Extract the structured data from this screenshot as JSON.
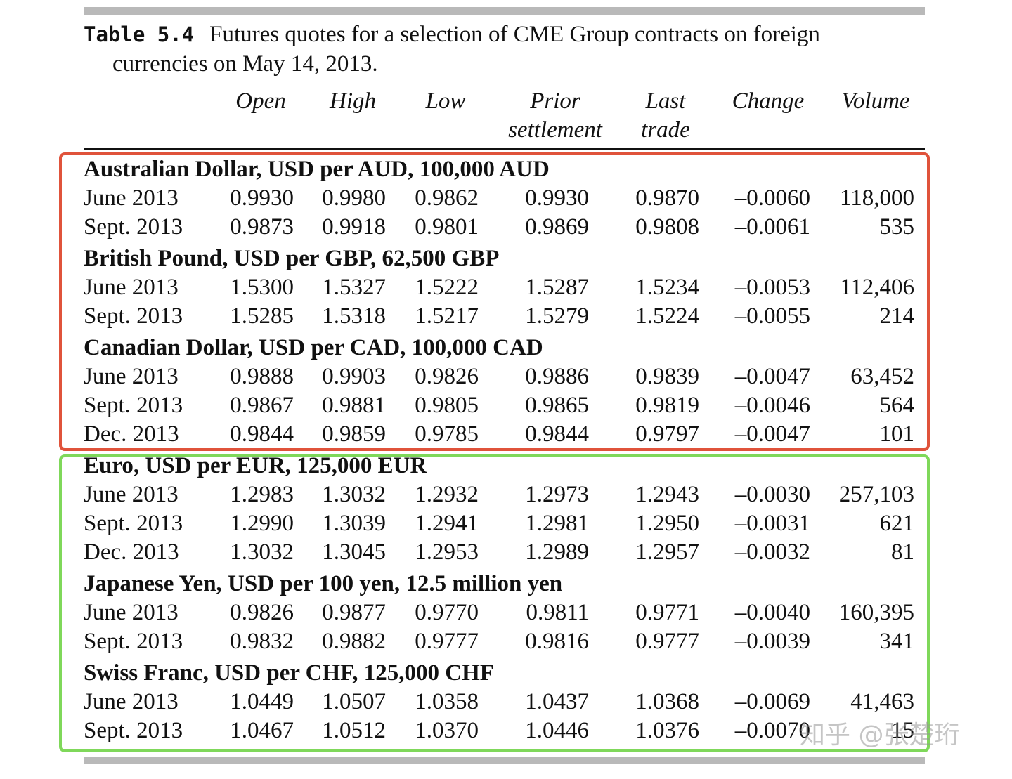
{
  "caption": {
    "label": "Table 5.4",
    "line1": "Futures quotes for a selection of CME Group contracts on foreign",
    "line2": "currencies on May 14, 2013."
  },
  "headers": {
    "open": "Open",
    "high": "High",
    "low": "Low",
    "prior": "Prior",
    "prior2": "settlement",
    "last": "Last",
    "last2": "trade",
    "change": "Change",
    "volume": "Volume"
  },
  "colors": {
    "red_box": "#e0533b",
    "green_box": "#7fd85a",
    "rules": "#b9b9b9"
  },
  "groups": [
    {
      "title": "Australian Dollar, USD per AUD, 100,000 AUD",
      "rows": [
        {
          "month": "June 2013",
          "open": "0.9930",
          "high": "0.9980",
          "low": "0.9862",
          "prior": "0.9930",
          "last": "0.9870",
          "change": "–0.0060",
          "volume": "118,000"
        },
        {
          "month": "Sept. 2013",
          "open": "0.9873",
          "high": "0.9918",
          "low": "0.9801",
          "prior": "0.9869",
          "last": "0.9808",
          "change": "–0.0061",
          "volume": "535"
        }
      ]
    },
    {
      "title": "British Pound, USD per GBP, 62,500 GBP",
      "rows": [
        {
          "month": "June 2013",
          "open": "1.5300",
          "high": "1.5327",
          "low": "1.5222",
          "prior": "1.5287",
          "last": "1.5234",
          "change": "–0.0053",
          "volume": "112,406"
        },
        {
          "month": "Sept. 2013",
          "open": "1.5285",
          "high": "1.5318",
          "low": "1.5217",
          "prior": "1.5279",
          "last": "1.5224",
          "change": "–0.0055",
          "volume": "214"
        }
      ]
    },
    {
      "title": "Canadian Dollar, USD per CAD, 100,000 CAD",
      "rows": [
        {
          "month": "June 2013",
          "open": "0.9888",
          "high": "0.9903",
          "low": "0.9826",
          "prior": "0.9886",
          "last": "0.9839",
          "change": "–0.0047",
          "volume": "63,452"
        },
        {
          "month": "Sept. 2013",
          "open": "0.9867",
          "high": "0.9881",
          "low": "0.9805",
          "prior": "0.9865",
          "last": "0.9819",
          "change": "–0.0046",
          "volume": "564"
        },
        {
          "month": "Dec. 2013",
          "open": "0.9844",
          "high": "0.9859",
          "low": "0.9785",
          "prior": "0.9844",
          "last": "0.9797",
          "change": "–0.0047",
          "volume": "101"
        }
      ]
    },
    {
      "title": "Euro, USD per EUR, 125,000 EUR",
      "rows": [
        {
          "month": "June 2013",
          "open": "1.2983",
          "high": "1.3032",
          "low": "1.2932",
          "prior": "1.2973",
          "last": "1.2943",
          "change": "–0.0030",
          "volume": "257,103"
        },
        {
          "month": "Sept. 2013",
          "open": "1.2990",
          "high": "1.3039",
          "low": "1.2941",
          "prior": "1.2981",
          "last": "1.2950",
          "change": "–0.0031",
          "volume": "621"
        },
        {
          "month": "Dec. 2013",
          "open": "1.3032",
          "high": "1.3045",
          "low": "1.2953",
          "prior": "1.2989",
          "last": "1.2957",
          "change": "–0.0032",
          "volume": "81"
        }
      ]
    },
    {
      "title": "Japanese Yen, USD per 100 yen, 12.5 million yen",
      "rows": [
        {
          "month": "June 2013",
          "open": "0.9826",
          "high": "0.9877",
          "low": "0.9770",
          "prior": "0.9811",
          "last": "0.9771",
          "change": "–0.0040",
          "volume": "160,395"
        },
        {
          "month": "Sept. 2013",
          "open": "0.9832",
          "high": "0.9882",
          "low": "0.9777",
          "prior": "0.9816",
          "last": "0.9777",
          "change": "–0.0039",
          "volume": "341"
        }
      ]
    },
    {
      "title": "Swiss Franc, USD per CHF, 125,000 CHF",
      "rows": [
        {
          "month": "June 2013",
          "open": "1.0449",
          "high": "1.0507",
          "low": "1.0358",
          "prior": "1.0437",
          "last": "1.0368",
          "change": "–0.0069",
          "volume": "41,463"
        },
        {
          "month": "Sept. 2013",
          "open": "1.0467",
          "high": "1.0512",
          "low": "1.0370",
          "prior": "1.0446",
          "last": "1.0376",
          "change": "–0.0070",
          "volume": "15"
        }
      ]
    }
  ],
  "watermark": "知乎 @张楚珩"
}
